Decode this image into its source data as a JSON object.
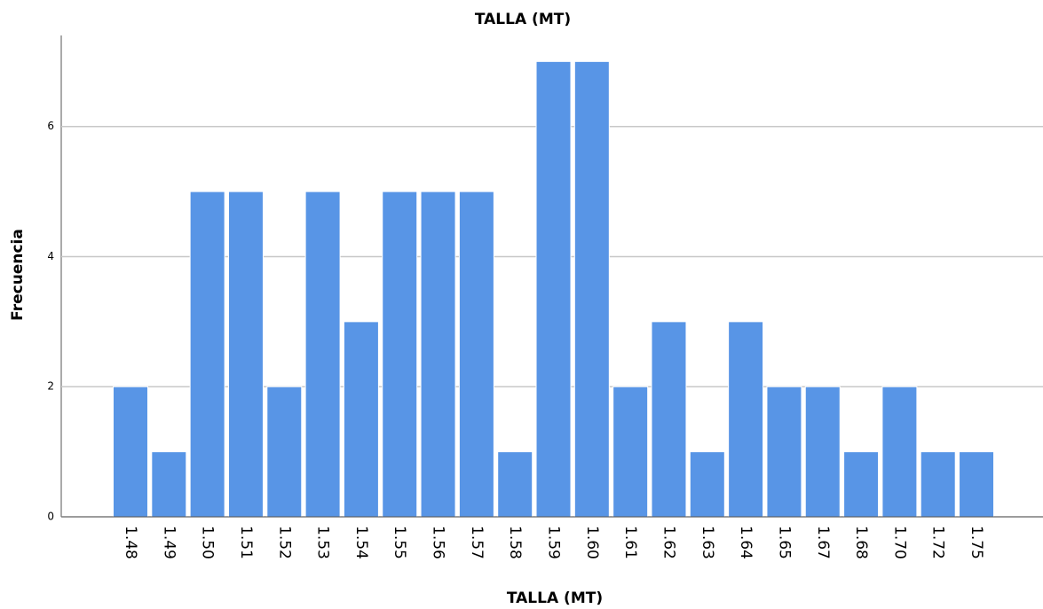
{
  "chart_data": {
    "type": "bar",
    "title": "TALLA (MT)",
    "x_label": "TALLA (MT)",
    "y_label": "Frecuencia",
    "categories": [
      "1.48",
      "1.49",
      "1.50",
      "1.51",
      "1.52",
      "1.53",
      "1.54",
      "1.55",
      "1.56",
      "1.57",
      "1.58",
      "1.59",
      "1.60",
      "1.61",
      "1.62",
      "1.63",
      "1.64",
      "1.65",
      "1.67",
      "1.68",
      "1.70",
      "1.72",
      "1.75"
    ],
    "values": [
      2,
      1,
      5,
      5,
      2,
      5,
      3,
      5,
      5,
      5,
      1,
      7,
      7,
      2,
      3,
      1,
      3,
      2,
      2,
      1,
      2,
      1,
      1
    ],
    "color": "#5895e6",
    "ylim": [
      0,
      7.4
    ],
    "yticks": [
      0,
      2,
      4,
      6
    ],
    "grid": true
  }
}
